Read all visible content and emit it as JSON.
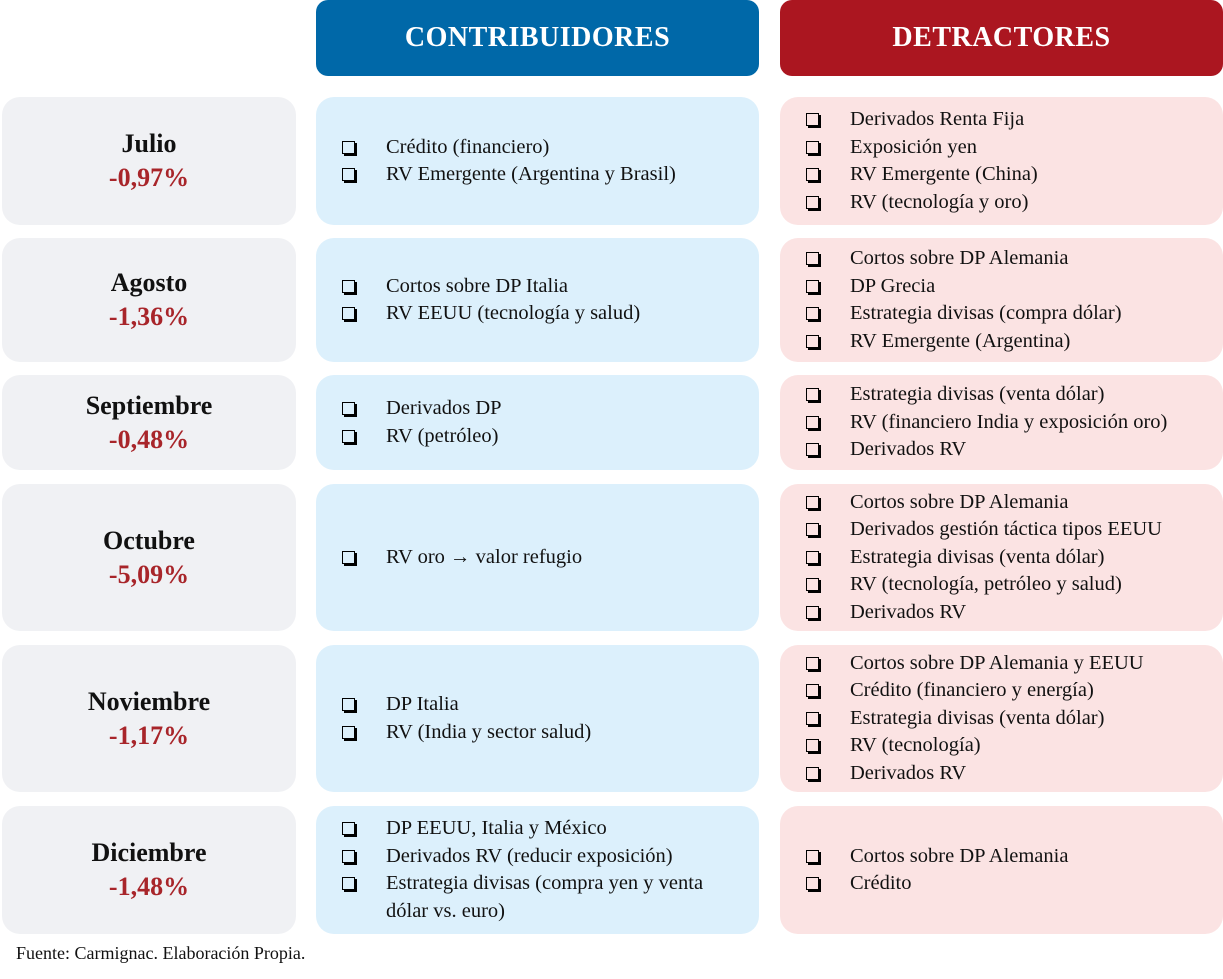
{
  "headers": {
    "contributors": "CONTRIBUIDORES",
    "detractors": "DETRACTORES"
  },
  "rows": [
    {
      "month": "Julio",
      "value": "-0,97%",
      "contributors": [
        "Crédito (financiero)",
        "RV Emergente (Argentina y Brasil)"
      ],
      "detractors": [
        "Derivados Renta Fija",
        "Exposición yen",
        "RV Emergente (China)",
        "RV (tecnología y oro)"
      ]
    },
    {
      "month": "Agosto",
      "value": "-1,36%",
      "contributors": [
        "Cortos sobre DP Italia",
        "RV EEUU (tecnología y salud)"
      ],
      "detractors": [
        "Cortos sobre DP Alemania",
        "DP Grecia",
        "Estrategia divisas (compra dólar)",
        "RV Emergente (Argentina)"
      ]
    },
    {
      "month": "Septiembre",
      "value": "-0,48%",
      "contributors": [
        "Derivados DP",
        "RV (petróleo)"
      ],
      "detractors": [
        "Estrategia divisas (venta dólar)",
        "RV (financiero India y exposición oro)",
        "Derivados RV"
      ]
    },
    {
      "month": "Octubre",
      "value": "-5,09%",
      "contributors": [
        "RV  oro → valor refugio"
      ],
      "detractors": [
        "Cortos sobre DP Alemania",
        "Derivados gestión táctica tipos EEUU",
        "Estrategia divisas (venta dólar)",
        "RV (tecnología, petróleo y salud)",
        "Derivados RV"
      ]
    },
    {
      "month": "Noviembre",
      "value": "-1,17%",
      "contributors": [
        "DP Italia",
        "RV (India y sector salud)"
      ],
      "detractors": [
        "Cortos sobre DP Alemania y EEUU",
        "Crédito (financiero y energía)",
        "Estrategia divisas (venta dólar)",
        "RV (tecnología)",
        "Derivados RV"
      ]
    },
    {
      "month": "Diciembre",
      "value": "-1,48%",
      "contributors": [
        "DP EEUU, Italia y México",
        "Derivados RV (reducir exposición)",
        "Estrategia divisas (compra yen y venta dólar vs. euro)"
      ],
      "detractors": [
        "Cortos sobre DP Alemania",
        "Crédito"
      ]
    }
  ],
  "footer": "Fuente: Carmignac. Elaboración Propia."
}
